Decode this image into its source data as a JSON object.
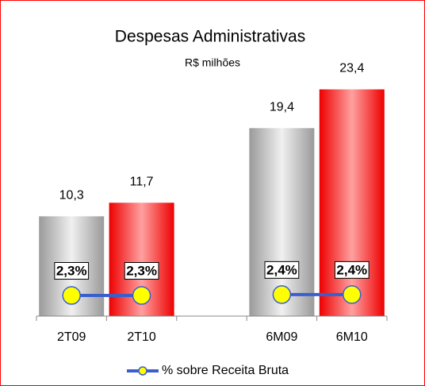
{
  "chart_data": {
    "type": "bar",
    "title": "Despesas Administrativas",
    "subtitle": "R$ milhões",
    "categories": [
      "2T09",
      "2T10",
      null,
      "6M09",
      "6M10"
    ],
    "series": [
      {
        "type": "bar",
        "colors": [
          "#a6a6a6",
          "#ff0000",
          null,
          "#a6a6a6",
          "#ff0000"
        ],
        "values": [
          10.3,
          11.7,
          null,
          19.4,
          23.4
        ],
        "value_labels": [
          "10,3",
          "11,7",
          null,
          "19,4",
          "23,4"
        ]
      },
      {
        "type": "line",
        "name": "% sobre Receita Bruta",
        "color": "#3a5fcd",
        "marker_color": "#ffff00",
        "axis": "y2",
        "values": [
          2.3,
          2.3,
          null,
          2.4,
          2.4
        ],
        "value_labels": [
          "2,3%",
          "2,3%",
          null,
          "2,4%",
          "2,4%"
        ]
      }
    ],
    "ylim": [
      0,
      25
    ],
    "y2lim": [
      0,
      27
    ],
    "legend": "bottom"
  }
}
